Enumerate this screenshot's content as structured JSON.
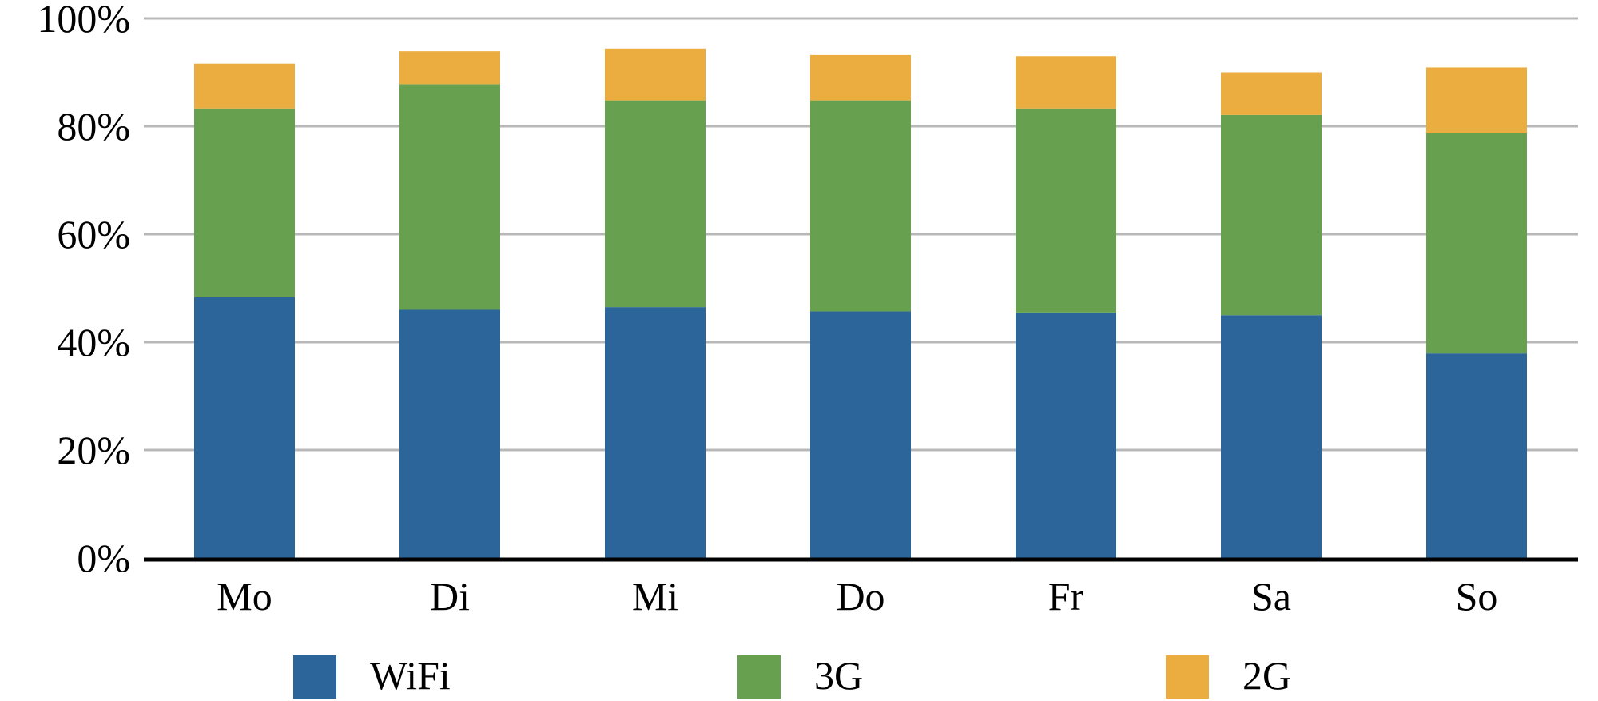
{
  "chart_data": {
    "type": "bar",
    "stacked": true,
    "categories": [
      "Mo",
      "Di",
      "Mi",
      "Do",
      "Fr",
      "Sa",
      "So"
    ],
    "series": [
      {
        "name": "WiFi",
        "color": "#2c6599",
        "values": [
          48.3,
          46.0,
          46.5,
          45.7,
          45.5,
          45.0,
          37.9
        ]
      },
      {
        "name": "3G",
        "color": "#67a14f",
        "values": [
          35.0,
          41.8,
          38.3,
          39.1,
          37.8,
          37.1,
          40.8
        ]
      },
      {
        "name": "2G",
        "color": "#ebad40",
        "values": [
          8.3,
          6.1,
          9.6,
          8.4,
          9.7,
          7.9,
          12.2
        ]
      }
    ],
    "title": "",
    "xlabel": "",
    "ylabel": "",
    "ylim": [
      0,
      100
    ],
    "yticks": [
      "0%",
      "20%",
      "40%",
      "60%",
      "80%",
      "100%"
    ],
    "grid": true,
    "legend_position": "bottom"
  }
}
